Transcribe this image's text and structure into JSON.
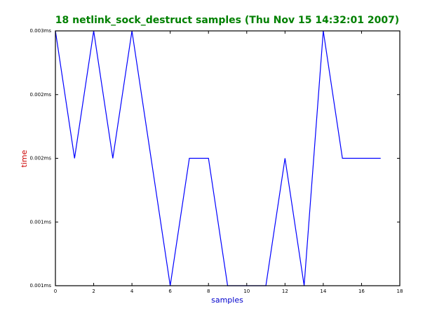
{
  "chart_data": {
    "type": "line",
    "title": "18 netlink_sock_destruct samples (Thu Nov 15 14:32:01 2007)",
    "xlabel": "samples",
    "ylabel": "time",
    "x": [
      0,
      1,
      2,
      3,
      4,
      5,
      6,
      7,
      8,
      9,
      10,
      11,
      12,
      13,
      14,
      15,
      16,
      17
    ],
    "series": [
      {
        "name": "time",
        "color": "#0000ff",
        "values": [
          0.003,
          0.002,
          0.003,
          0.002,
          0.003,
          0.002,
          0.001,
          0.002,
          0.002,
          0.001,
          0.001,
          0.001,
          0.002,
          0.001,
          0.003,
          0.002,
          0.002,
          0.002
        ]
      }
    ],
    "xlim": [
      0,
      18
    ],
    "xticks": [
      0,
      2,
      4,
      6,
      8,
      10,
      12,
      14,
      16,
      18
    ],
    "ylim": [
      0.001,
      0.003
    ],
    "yticks": [
      {
        "value": 0.001,
        "label": "0.001ms"
      },
      {
        "value": 0.0015,
        "label": "0.001ms"
      },
      {
        "value": 0.002,
        "label": "0.002ms"
      },
      {
        "value": 0.0025,
        "label": "0.002ms"
      },
      {
        "value": 0.003,
        "label": "0.003ms"
      }
    ],
    "grid": false
  }
}
